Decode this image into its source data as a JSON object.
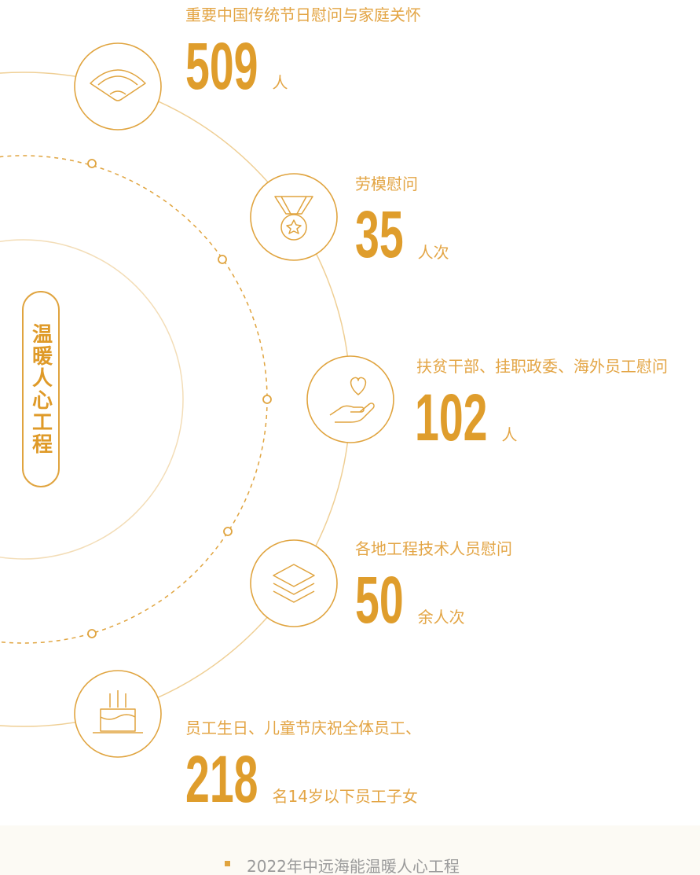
{
  "center_label": "温暖人心工程",
  "items": [
    {
      "title": "重要中国传统节日慰问与家庭关怀",
      "value": 509,
      "unit": "人"
    },
    {
      "title": "劳模慰问",
      "value": 35,
      "unit": "人次"
    },
    {
      "title": "扶贫干部、挂职政委、海外员工慰问",
      "value": 102,
      "unit": "人"
    },
    {
      "title": "各地工程技术人员慰问",
      "value": 50,
      "unit": "余人次"
    },
    {
      "title": "员工生日、儿童节庆祝全体员工、",
      "value": 218,
      "unit": "名14岁以下员工子女"
    }
  ],
  "caption": "2022年中远海能温暖人心工程"
}
